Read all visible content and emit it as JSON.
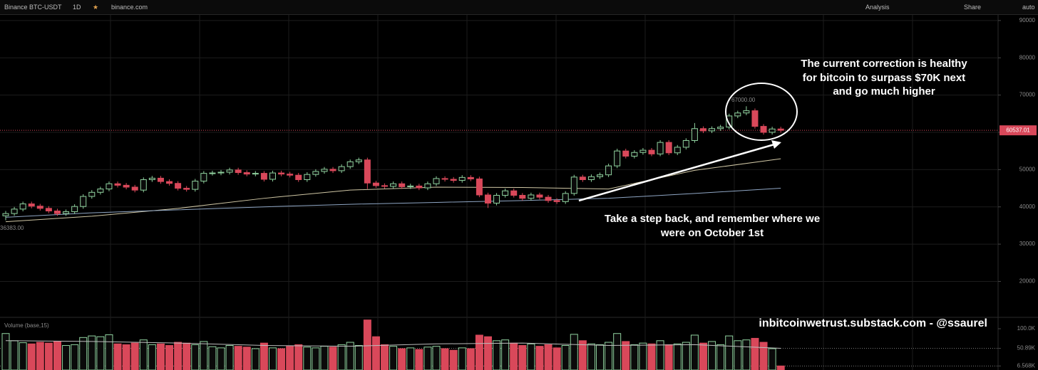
{
  "toolbar": {
    "symbol": "Binance BTC-USDT",
    "interval": "1D",
    "source": "binance.com",
    "analysis": "Analysis",
    "share": "Share",
    "scale": "auto"
  },
  "chart_data": {
    "type": "candlestick",
    "up_color": "#8fd19e",
    "down_color": "#d9485a",
    "ylim": [
      11500,
      91500
    ],
    "yticks": [
      20000,
      30000,
      40000,
      50000,
      60000,
      70000,
      80000,
      90000
    ],
    "grid": true,
    "candles": [
      [
        37600,
        38900,
        36383,
        38200
      ],
      [
        38200,
        40000,
        37600,
        39400
      ],
      [
        39400,
        41400,
        38800,
        40800
      ],
      [
        40800,
        41400,
        39600,
        40200
      ],
      [
        40200,
        40800,
        39000,
        39600
      ],
      [
        39600,
        40200,
        38300,
        38900
      ],
      [
        38900,
        39500,
        37600,
        38200
      ],
      [
        38200,
        39300,
        37600,
        38700
      ],
      [
        38700,
        40700,
        38100,
        40100
      ],
      [
        40100,
        43400,
        39500,
        42800
      ],
      [
        42800,
        44500,
        42200,
        43900
      ],
      [
        43900,
        45400,
        43300,
        44800
      ],
      [
        44800,
        46800,
        44200,
        46200
      ],
      [
        46200,
        46800,
        45200,
        45800
      ],
      [
        45800,
        46400,
        44700,
        45300
      ],
      [
        45300,
        45900,
        43900,
        44500
      ],
      [
        44500,
        47900,
        43900,
        47300
      ],
      [
        47300,
        48300,
        46700,
        47700
      ],
      [
        47700,
        48300,
        46200,
        46800
      ],
      [
        46800,
        47400,
        45700,
        46300
      ],
      [
        46300,
        46900,
        44400,
        45000
      ],
      [
        45000,
        45600,
        44100,
        44700
      ],
      [
        44700,
        47500,
        44100,
        46900
      ],
      [
        46900,
        49600,
        46300,
        49000
      ],
      [
        49000,
        49700,
        48400,
        49100
      ],
      [
        49100,
        49900,
        48500,
        49300
      ],
      [
        49300,
        50500,
        48700,
        49900
      ],
      [
        49900,
        50500,
        48600,
        49200
      ],
      [
        49200,
        49800,
        48200,
        48800
      ],
      [
        48800,
        49600,
        48200,
        49000
      ],
      [
        49000,
        49600,
        46800,
        47400
      ],
      [
        47400,
        49700,
        46800,
        49100
      ],
      [
        49100,
        49700,
        48200,
        48800
      ],
      [
        48800,
        49400,
        47900,
        48500
      ],
      [
        48500,
        49100,
        46700,
        47300
      ],
      [
        47300,
        49300,
        46700,
        48700
      ],
      [
        48700,
        50100,
        48100,
        49500
      ],
      [
        49500,
        50700,
        48900,
        50100
      ],
      [
        50100,
        50700,
        49100,
        49700
      ],
      [
        49700,
        51400,
        49100,
        50800
      ],
      [
        50800,
        52700,
        50200,
        52100
      ],
      [
        52100,
        53200,
        51500,
        52600
      ],
      [
        52600,
        53200,
        44800,
        46400
      ],
      [
        46400,
        47000,
        45100,
        45700
      ],
      [
        45700,
        46300,
        44900,
        45500
      ],
      [
        45500,
        46800,
        44900,
        46200
      ],
      [
        46200,
        46800,
        44800,
        45400
      ],
      [
        45400,
        46200,
        44800,
        45600
      ],
      [
        45600,
        46200,
        44500,
        45100
      ],
      [
        45100,
        46800,
        44500,
        46200
      ],
      [
        46200,
        48200,
        45600,
        47600
      ],
      [
        47600,
        48200,
        46800,
        47400
      ],
      [
        47400,
        48000,
        46500,
        47100
      ],
      [
        47100,
        48500,
        46500,
        47900
      ],
      [
        47900,
        48500,
        46900,
        47500
      ],
      [
        47500,
        48100,
        42600,
        43200
      ],
      [
        43200,
        43800,
        39700,
        41000
      ],
      [
        41000,
        43700,
        40400,
        43100
      ],
      [
        43100,
        44900,
        42500,
        44300
      ],
      [
        44300,
        44900,
        42500,
        43100
      ],
      [
        43100,
        43700,
        41700,
        42300
      ],
      [
        42300,
        43800,
        41700,
        43200
      ],
      [
        43200,
        43800,
        42000,
        42600
      ],
      [
        42600,
        43200,
        41100,
        41700
      ],
      [
        41700,
        42300,
        40800,
        41400
      ],
      [
        41400,
        44200,
        40800,
        43600
      ],
      [
        43600,
        48600,
        43000,
        48000
      ],
      [
        48000,
        48600,
        46700,
        47300
      ],
      [
        47300,
        48700,
        46700,
        48100
      ],
      [
        48100,
        49200,
        47500,
        48600
      ],
      [
        48600,
        51600,
        48000,
        51000
      ],
      [
        51000,
        55600,
        50400,
        55000
      ],
      [
        55000,
        55600,
        53000,
        53600
      ],
      [
        53600,
        55200,
        53000,
        54600
      ],
      [
        54600,
        55800,
        54000,
        55200
      ],
      [
        55200,
        55800,
        53600,
        54200
      ],
      [
        54200,
        57900,
        53600,
        57300
      ],
      [
        57300,
        57900,
        53900,
        54500
      ],
      [
        54500,
        56600,
        53900,
        56000
      ],
      [
        56000,
        58400,
        55400,
        57800
      ],
      [
        57800,
        62500,
        57200,
        61000
      ],
      [
        61000,
        61600,
        59800,
        60400
      ],
      [
        60400,
        61600,
        59800,
        61000
      ],
      [
        61000,
        62000,
        60400,
        61400
      ],
      [
        61400,
        65000,
        60800,
        64400
      ],
      [
        64400,
        65800,
        63800,
        65200
      ],
      [
        65200,
        67000,
        64600,
        65800
      ],
      [
        65800,
        66400,
        61000,
        61600
      ],
      [
        61600,
        62200,
        59400,
        60000
      ],
      [
        60000,
        61500,
        59400,
        60900
      ],
      [
        60900,
        61500,
        59900,
        60537.01
      ]
    ],
    "series": [
      {
        "color": "#cfc6a4",
        "x": [
          0,
          10,
          20,
          30,
          40,
          50,
          60,
          70,
          80,
          90
        ],
        "values": [
          36000,
          37500,
          39600,
          42300,
          44500,
          45300,
          45200,
          44800,
          49800,
          52900
        ]
      },
      {
        "color": "#8fa6c4",
        "x": [
          0,
          10,
          20,
          30,
          40,
          50,
          60,
          70,
          80,
          90
        ],
        "values": [
          37200,
          38400,
          39200,
          40000,
          40700,
          41200,
          41700,
          42300,
          43600,
          45000
        ]
      }
    ],
    "high_label": "67000.00",
    "low_label": "36383.00",
    "last_price_label": "60537.01",
    "annotation_top": [
      "The current correction is healthy",
      "for bitcoin to surpass $70K next",
      "and go much higher"
    ],
    "annotation_bottom": [
      "Take a step back, and remember where we",
      "were on October 1st"
    ],
    "watermark": "inbitcoinwetrust.substack.com - @ssaurel",
    "volume_title": "Volume (base,15)",
    "vlim": [
      0,
      125000
    ],
    "vticks": [
      {
        "value": 100000,
        "label": "100.0K"
      },
      {
        "value": 50890,
        "label": "50.89K"
      },
      {
        "value": 6568,
        "label": "6.568K"
      }
    ],
    "volumes": [
      88000,
      70000,
      65000,
      62000,
      66000,
      64000,
      68000,
      58000,
      60000,
      78000,
      82000,
      80000,
      85000,
      62000,
      60000,
      64000,
      72000,
      60000,
      62000,
      58000,
      66000,
      64000,
      60000,
      68000,
      55000,
      52000,
      58000,
      56000,
      54000,
      50000,
      64000,
      52000,
      50000,
      56000,
      60000,
      54000,
      52000,
      56000,
      54000,
      60000,
      66000,
      58000,
      122000,
      80000,
      60000,
      56000,
      50000,
      52000,
      48000,
      54000,
      56000,
      50000,
      46000,
      52000,
      50000,
      84000,
      80000,
      70000,
      72000,
      64000,
      58000,
      62000,
      56000,
      60000,
      52000,
      58000,
      86000,
      70000,
      62000,
      60000,
      66000,
      88000,
      68000,
      60000,
      64000,
      62000,
      70000,
      60000,
      62000,
      66000,
      84000,
      64000,
      68000,
      60000,
      82000,
      70000,
      72000,
      76000,
      66000,
      50000,
      6568
    ],
    "volume_ma": {
      "color": "#bdbdbd",
      "x": [
        0,
        10,
        20,
        30,
        40,
        50,
        60,
        70,
        80,
        90
      ],
      "values": [
        70000,
        68000,
        64000,
        58000,
        56000,
        62000,
        64000,
        58000,
        60000,
        50890
      ]
    }
  }
}
